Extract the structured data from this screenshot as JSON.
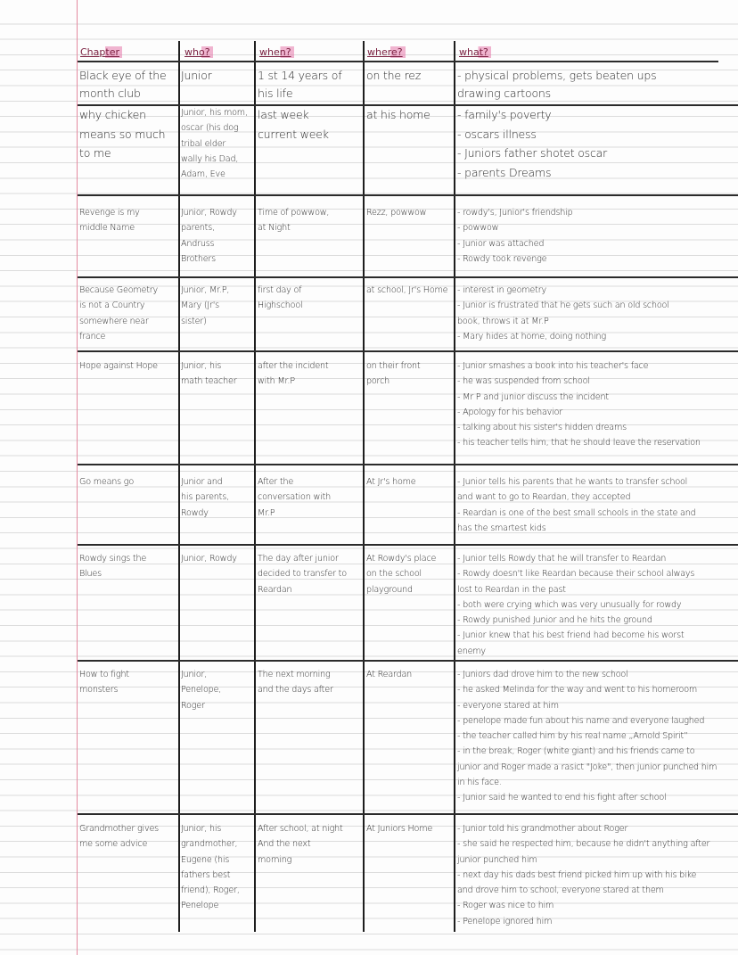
{
  "header": {
    "chapter": "Chapter",
    "who": "who?",
    "when": "when?",
    "where": "where?",
    "what": "what?"
  },
  "colors": {
    "margin": "#e48aa0",
    "header_highlight": "#e678aa",
    "ink": "#2a2a2a"
  },
  "rows": [
    {
      "chapter": [
        "Black eye of the",
        "month club"
      ],
      "who": [
        "Junior"
      ],
      "when": [
        "1 st 14 years of",
        "his life"
      ],
      "where": [
        "on the rez"
      ],
      "what": [
        "- physical problems, gets beaten ups",
        "drawing cartoons"
      ]
    },
    {
      "chapter": [
        "why chicken",
        "means so much",
        "to me"
      ],
      "who": [
        "Junior, his mom,",
        "oscar (his dog",
        "tribal elder",
        "wally his Dad,",
        "Adam, Eve"
      ],
      "when": [
        "last week",
        "current week"
      ],
      "where": [
        "at his home"
      ],
      "what": [
        "- family's poverty",
        "- oscars illness",
        "- Juniors father shotet oscar",
        "- parents Dreams"
      ]
    },
    {
      "chapter": [
        "Revenge is my",
        "middle Name"
      ],
      "who": [
        "Junior, Rowdy",
        "parents,",
        "Andruss",
        "Brothers"
      ],
      "when": [
        "Time of powwow,",
        "at Night"
      ],
      "where": [
        "Rezz, powwow"
      ],
      "what": [
        "- rowdy's, Junior's friendship",
        "- powwow",
        "- Junior was attached",
        "- Rowdy took revenge"
      ]
    },
    {
      "chapter": [
        "Because Geometry",
        "is not a Country",
        "somewhere near",
        "france"
      ],
      "who": [
        "Junior, Mr.P,",
        "Mary (Jr's",
        "sister)"
      ],
      "when": [
        "first day of",
        "Highschool"
      ],
      "where": [
        "at school, Jr's Home"
      ],
      "what": [
        "- interest in geometry",
        "- Junior is frustrated that he gets such an old school",
        "book, throws it at Mr.P",
        "- Mary hides at home, doing nothing"
      ]
    },
    {
      "chapter": [
        "Hope against Hope"
      ],
      "who": [
        "Junior, his",
        "math teacher"
      ],
      "when": [
        "after the incident",
        "with Mr.P"
      ],
      "where": [
        "on their front",
        "porch"
      ],
      "what": [
        "- Junior smashes a book into his teacher's face",
        "- he was suspended from school",
        "- Mr P and junior discuss the incident",
        "- Apology for his behavior",
        "- talking about his sister's hidden dreams",
        "- his teacher tells him, that he should leave the reservation"
      ]
    },
    {
      "chapter": [
        "Go means go"
      ],
      "who": [
        "Junior and",
        "his parents,",
        "Rowdy"
      ],
      "when": [
        "After the",
        "conversation with",
        "Mr.P"
      ],
      "where": [
        "At Jr's home"
      ],
      "what": [
        "- Junior tells his parents that he wants to transfer school",
        "and want to go to Reardan, they accepted",
        "- Reardan is one of the best small schools in the state and",
        "has the smartest kids"
      ]
    },
    {
      "chapter": [
        "Rowdy sings the",
        "Blues"
      ],
      "who": [
        "Junior, Rowdy"
      ],
      "when": [
        "The day after junior",
        "decided to transfer to",
        "Reardan"
      ],
      "where": [
        "At Rowdy's place",
        "on the school",
        "playground"
      ],
      "what": [
        "- Junior tells Rowdy that he will transfer to Reardan",
        "- Rowdy doesn't like Reardan because their school always",
        "lost to Reardan in the past",
        "- both were crying which was very unusually for rowdy",
        "- Rowdy punished Junior and he hits the ground",
        "- Junior knew that his best friend had become his worst",
        "enemy"
      ]
    },
    {
      "chapter": [
        "How to fight",
        "monsters"
      ],
      "who": [
        "Junior,",
        "Penelope,",
        "Roger"
      ],
      "when": [
        "The next morning",
        "and the days after"
      ],
      "where": [
        "At Reardan"
      ],
      "what": [
        "- Juniors dad drove him to the new school",
        "- he asked Melinda for the way and went to his homeroom",
        "- everyone stared at him",
        "- penelope made fun about his name and everyone laughed",
        "- the teacher called him by his real name „Arnold Spirit”",
        "- in the break, Roger (white giant) and his friends came to",
        "junior and Roger made a rasict \"Joke\", then junior punched him",
        "in his face.",
        "- Junior said he wanted to end his fight after school"
      ]
    },
    {
      "chapter": [
        "Grandmother gives",
        "me some advice"
      ],
      "who": [
        "Junior, his",
        "grandmother,",
        "Eugene (his",
        "fathers best",
        "friend), Roger,",
        "Penelope"
      ],
      "when": [
        "After school, at night",
        "And the next",
        "morning"
      ],
      "where": [
        "At Juniors Home"
      ],
      "what": [
        "- Junior told his grandmother about Roger",
        "- she said he respected him, because he didn't anything after",
        "junior punched him",
        "- next day his dads best friend picked him up with his bike",
        "and drove him to school, everyone stared at them",
        "- Roger was nice to him",
        "- Penelope ignored him"
      ]
    }
  ]
}
